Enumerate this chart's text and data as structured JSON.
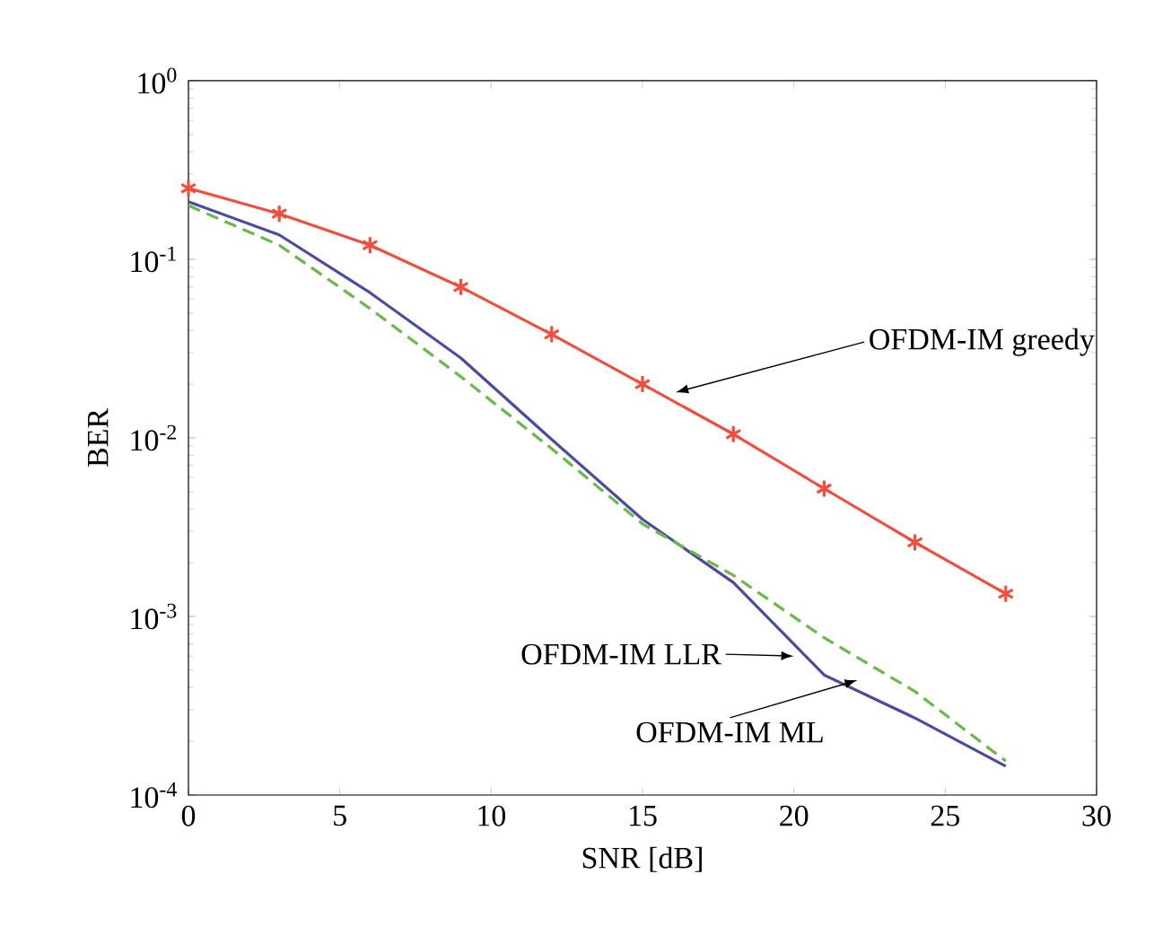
{
  "chart_data": {
    "type": "line",
    "xlabel": "SNR [dB]",
    "ylabel": "BER",
    "log": "y",
    "grid": false,
    "xlim": [
      0,
      30
    ],
    "xticks": [
      0,
      5,
      10,
      15,
      20,
      25,
      30
    ],
    "ylim": [
      0.0001,
      1
    ],
    "yticks": [
      {
        "value": 0.0001,
        "label": "10$^{-4}$"
      },
      {
        "value": 0.001,
        "label": "10$^{-3}$"
      },
      {
        "value": 0.01,
        "label": "10$^{-2}$"
      },
      {
        "value": 0.1,
        "label": "10$^{-1}$"
      },
      {
        "value": 1,
        "label": "10$^{0}$"
      }
    ],
    "x": [
      0,
      3,
      6,
      9,
      12,
      15,
      18,
      21,
      24,
      27
    ],
    "series": [
      {
        "color": "#f04e3e",
        "marker": "cross",
        "line_style": "solid",
        "values": [
          0.25,
          0.18,
          0.12,
          0.07,
          0.038,
          0.02,
          0.0105,
          0.0052,
          0.0026,
          0.00134
        ]
      },
      {
        "color": "#4b4ba0",
        "marker": "none",
        "line_style": "solid",
        "values": [
          0.21,
          0.137,
          0.065,
          0.028,
          0.0098,
          0.0035,
          0.00155,
          0.00047,
          0.00027,
          0.000145
        ]
      },
      {
        "color": "#6ab84a",
        "marker": "none",
        "line_style": "dashed",
        "values": [
          0.2,
          0.12,
          0.053,
          0.022,
          0.0087,
          0.0033,
          0.0017,
          0.00076,
          0.00038,
          0.000155
        ]
      }
    ],
    "annotations": [
      {
        "text": "OFDM-IM greedy",
        "x": 16.1,
        "y": 0.018
      },
      {
        "text": "OFDM-IM LLR",
        "x": 20.0,
        "y": 0.0006
      },
      {
        "text": "OFDM-IM ML",
        "x": 22.1,
        "y": 0.00044
      }
    ]
  }
}
